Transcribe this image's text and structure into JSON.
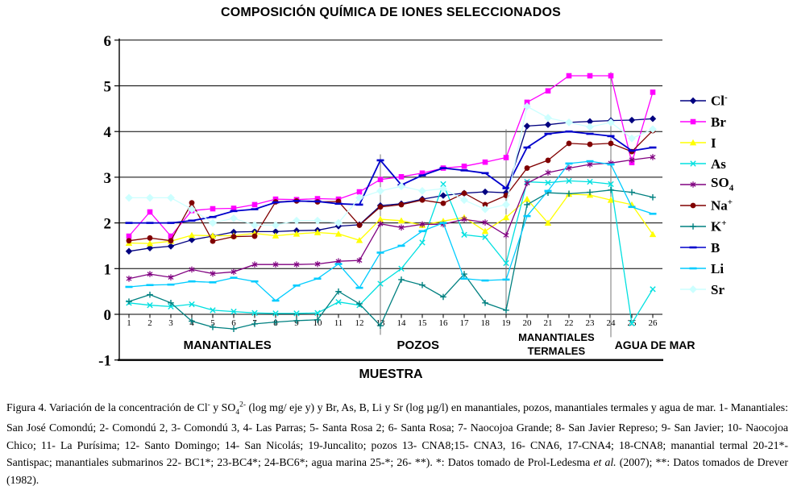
{
  "chart_data": {
    "type": "line",
    "title": "COMPOSICIÓN QUÍMICA DE IONES SELECCIONADOS",
    "xlabel": "MUESTRA",
    "ylabel": "",
    "ylim": [
      -1,
      6
    ],
    "yticks": [
      -1,
      0,
      1,
      2,
      3,
      4,
      5,
      6
    ],
    "grid": true,
    "legend_position": "right",
    "x": [
      1,
      2,
      3,
      4,
      5,
      6,
      7,
      8,
      9,
      10,
      11,
      12,
      13,
      14,
      15,
      16,
      17,
      18,
      19,
      20,
      21,
      22,
      23,
      24,
      25,
      26
    ],
    "zones": [
      {
        "lines": [
          "MANANTIALES"
        ],
        "center_sample": 5.7
      },
      {
        "lines": [
          "POZOS"
        ],
        "center_sample": 14.8
      },
      {
        "lines": [
          "MANANTIALES",
          "TERMALES"
        ],
        "center_sample": 21.4
      },
      {
        "lines": [
          "AGUA DE MAR"
        ],
        "center_sample": 26.1
      }
    ],
    "dividers": [
      {
        "at_sample": 13,
        "from": 3.5,
        "to": -0.45
      },
      {
        "at_sample": 19,
        "from": 4.05,
        "to": 0
      },
      {
        "at_sample": 24,
        "from": 5.3,
        "to": -0.5
      }
    ],
    "series": [
      {
        "name": "Cl-",
        "label": "Cl",
        "sup": "-",
        "sub": "",
        "color": "#000080",
        "marker": "diamond",
        "values": [
          1.38,
          1.45,
          1.49,
          1.63,
          1.71,
          1.8,
          1.81,
          1.81,
          1.83,
          1.84,
          1.93,
          1.96,
          2.38,
          2.42,
          2.52,
          2.6,
          2.65,
          2.68,
          2.66,
          4.12,
          4.15,
          4.2,
          4.22,
          4.24,
          4.25,
          4.28
        ]
      },
      {
        "name": "Br",
        "label": "Br",
        "sup": "",
        "sub": "",
        "color": "#FF00FF",
        "marker": "square",
        "values": [
          1.71,
          2.24,
          1.71,
          2.27,
          2.31,
          2.32,
          2.4,
          2.52,
          2.51,
          2.53,
          2.52,
          2.68,
          2.95,
          3.01,
          3.09,
          3.2,
          3.24,
          3.33,
          3.43,
          4.64,
          4.89,
          5.22,
          5.22,
          5.22,
          3.32,
          4.86
        ]
      },
      {
        "name": "I",
        "label": "I",
        "sup": "",
        "sub": "",
        "color": "#FFFF00",
        "marker": "triangle",
        "values": [
          1.56,
          1.55,
          1.6,
          1.73,
          1.72,
          1.72,
          1.77,
          1.72,
          1.76,
          1.79,
          1.76,
          1.62,
          2.08,
          2.05,
          1.95,
          2.04,
          2.12,
          1.82,
          2.12,
          2.52,
          2.0,
          2.63,
          2.61,
          2.5,
          2.4,
          1.75
        ]
      },
      {
        "name": "As",
        "label": "As",
        "sup": "",
        "sub": "",
        "color": "#00E0E0",
        "marker": "x",
        "values": [
          0.25,
          0.2,
          0.17,
          0.22,
          0.09,
          0.06,
          0.03,
          0.02,
          0.02,
          0.03,
          0.27,
          0.2,
          0.67,
          1.0,
          1.57,
          2.85,
          1.74,
          1.69,
          1.12,
          2.9,
          2.88,
          2.92,
          2.9,
          2.85,
          -0.2,
          0.55
        ]
      },
      {
        "name": "SO4",
        "label": "SO",
        "sup": "",
        "sub": "4",
        "color": "#800080",
        "marker": "asterisk",
        "values": [
          0.78,
          0.88,
          0.81,
          0.98,
          0.89,
          0.93,
          1.09,
          1.09,
          1.09,
          1.1,
          1.16,
          1.18,
          1.98,
          1.9,
          1.97,
          1.97,
          2.08,
          2.01,
          1.73,
          2.87,
          3.1,
          3.2,
          3.28,
          3.31,
          3.38,
          3.44
        ]
      },
      {
        "name": "Na+",
        "label": "Na",
        "sup": "+",
        "sub": "",
        "color": "#800000",
        "marker": "circle",
        "values": [
          1.61,
          1.67,
          1.61,
          2.44,
          1.6,
          1.7,
          1.71,
          2.46,
          2.48,
          2.46,
          2.47,
          1.95,
          2.35,
          2.4,
          2.5,
          2.43,
          2.65,
          2.4,
          2.6,
          3.2,
          3.37,
          3.74,
          3.72,
          3.74,
          3.56,
          4.02
        ]
      },
      {
        "name": "K+",
        "label": "K",
        "sup": "+",
        "sub": "",
        "color": "#008080",
        "marker": "plus",
        "values": [
          0.28,
          0.43,
          0.25,
          -0.15,
          -0.28,
          -0.32,
          -0.21,
          -0.17,
          -0.14,
          -0.12,
          0.5,
          0.23,
          -0.25,
          0.76,
          0.64,
          0.38,
          0.88,
          0.25,
          0.09,
          2.4,
          2.66,
          2.64,
          2.67,
          2.72,
          2.67,
          2.56
        ]
      },
      {
        "name": "B",
        "label": "B",
        "sup": "",
        "sub": "",
        "color": "#0000CC",
        "marker": "dash",
        "values": [
          2.0,
          2.0,
          2.0,
          2.05,
          2.13,
          2.26,
          2.3,
          2.45,
          2.48,
          2.47,
          2.42,
          2.4,
          3.37,
          2.83,
          3.04,
          3.2,
          3.15,
          3.09,
          2.76,
          3.65,
          3.95,
          4.0,
          3.95,
          3.9,
          3.58,
          3.65
        ]
      },
      {
        "name": "Li",
        "label": "Li",
        "sup": "",
        "sub": "",
        "color": "#00CCFF",
        "marker": "dash",
        "values": [
          0.6,
          0.64,
          0.65,
          0.72,
          0.7,
          0.8,
          0.72,
          0.3,
          0.63,
          0.78,
          1.1,
          0.58,
          1.35,
          1.5,
          1.82,
          2.0,
          0.78,
          0.74,
          0.76,
          2.15,
          2.7,
          3.3,
          3.35,
          3.28,
          2.35,
          2.2
        ]
      },
      {
        "name": "Sr",
        "label": "Sr",
        "sup": "",
        "sub": "",
        "color": "#CCFFFF",
        "marker": "diamond-open",
        "values": [
          2.55,
          2.55,
          2.55,
          2.3,
          2.0,
          2.1,
          1.95,
          1.95,
          2.05,
          2.05,
          2.0,
          2.55,
          2.7,
          2.8,
          2.7,
          2.75,
          2.5,
          2.3,
          2.4,
          4.55,
          4.3,
          4.2,
          4.1,
          4.2,
          3.85,
          4.05
        ]
      }
    ]
  },
  "caption": {
    "segments": [
      {
        "t": "Figura 4. Variación de la concentración de Cl",
        "style": ""
      },
      {
        "t": "-",
        "style": "sup"
      },
      {
        "t": " y SO",
        "style": ""
      },
      {
        "t": "4",
        "style": "sub"
      },
      {
        "t": "2-",
        "style": "sup"
      },
      {
        "t": " (log mg/ eje y) y Br, As, B, Li y Sr (log µg/l) en manantiales, pozos, manantiales termales y agua de mar. 1- Manantiales: San José Comondú; 2- Comondú 2, 3- Comondú 3, 4- Las Parras; 5- Santa Rosa 2; 6- Santa Rosa; 7- Naocojoa Grande; 8- San Javier Represo; 9- San Javier; 10- Naocojoa Chico; 11- La Purísima; 12- Santo Domingo; 14- San Nicolás; 19-Juncalito; pozos 13- CNA8;15- CNA3, 16- CNA6, 17-CNA4; 18-CNA8; manantial termal 20-21*- Santispac; manantiales submarinos 22- BC1*; 23-BC4*; 24-BC6*; agua marina 25-*; 26- **). *: Datos tomado de Prol-Ledesma ",
        "style": ""
      },
      {
        "t": "et al.",
        "style": "italic"
      },
      {
        "t": " (2007); **: Datos tomados de Drever (1982).",
        "style": ""
      }
    ]
  }
}
